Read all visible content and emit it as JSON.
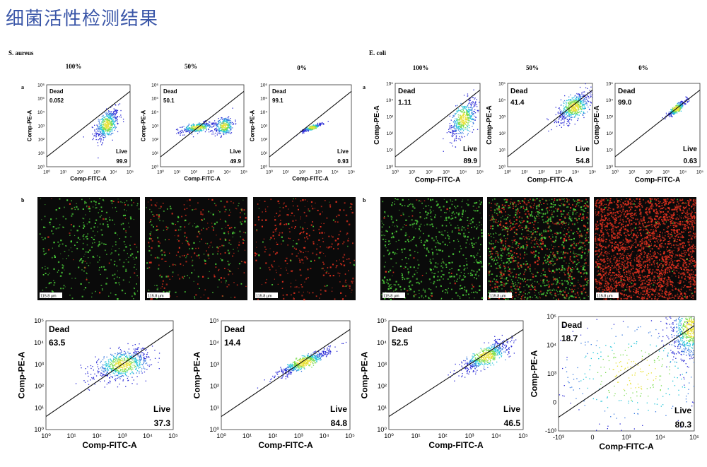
{
  "page_title": "细菌活性检测结果",
  "colors": {
    "title": "#3a56a8",
    "live_green": "#4cd13a",
    "dead_red": "#e0301e",
    "density_low": "#2b2bd6",
    "density_mid": "#22c4d8",
    "density_high": "#e8e23a"
  },
  "panels": {
    "s_aureus": {
      "name": "S. aureus",
      "panel_a": "a",
      "panel_b": "b",
      "columns": [
        "100%",
        "50%",
        "0%"
      ]
    },
    "e_coli": {
      "name": "E. coli",
      "panel_a": "a",
      "panel_b": "b",
      "columns": [
        "100%",
        "50%",
        "0%"
      ]
    }
  },
  "scale_bar_label": "115.8 µm",
  "micrographs": [
    {
      "live_fraction": 1.0,
      "dead_fraction": 0.05,
      "density": "sparse"
    },
    {
      "live_fraction": 0.45,
      "dead_fraction": 0.55,
      "density": "sparse"
    },
    {
      "live_fraction": 0.1,
      "dead_fraction": 0.9,
      "density": "sparse"
    },
    {
      "live_fraction": 0.95,
      "dead_fraction": 0.05,
      "density": "medium"
    },
    {
      "live_fraction": 0.55,
      "dead_fraction": 0.45,
      "density": "dense"
    },
    {
      "live_fraction": 0.02,
      "dead_fraction": 0.98,
      "density": "very dense"
    }
  ],
  "chart_data": [
    {
      "type": "scatter",
      "xlabel": "Comp-FITC-A",
      "ylabel": "Comp-PE-A",
      "xticks": [
        "10⁰",
        "10¹",
        "10²",
        "10³",
        "10⁴",
        "10⁵"
      ],
      "yticks": [
        "10⁰",
        "10¹",
        "10²",
        "10³",
        "10⁴",
        "10⁵",
        "10⁶"
      ],
      "gates": [
        {
          "label": "Dead",
          "value": "0.052"
        },
        {
          "label": "Live",
          "value": "99.9"
        }
      ],
      "clusters": [
        {
          "x": 3.6,
          "y": 3.1,
          "sx": 0.35,
          "sy": 0.55,
          "n": 500,
          "corr": 0.5
        }
      ]
    },
    {
      "type": "scatter",
      "xlabel": "Comp-FITC-A",
      "ylabel": "Comp-PE-A",
      "xticks": [
        "10⁰",
        "10¹",
        "10²",
        "10³",
        "10⁴",
        "10⁵"
      ],
      "yticks": [
        "10⁰",
        "10¹",
        "10²",
        "10³",
        "10⁴",
        "10⁵",
        "10⁶"
      ],
      "gates": [
        {
          "label": "Dead",
          "value": "50.1"
        },
        {
          "label": "Live",
          "value": "49.9"
        }
      ],
      "clusters": [
        {
          "x": 2.2,
          "y": 2.9,
          "sx": 0.5,
          "sy": 0.2,
          "n": 350,
          "corr": 0.6
        },
        {
          "x": 3.8,
          "y": 3.0,
          "sx": 0.3,
          "sy": 0.35,
          "n": 300,
          "corr": 0.3
        }
      ]
    },
    {
      "type": "scatter",
      "xlabel": "Comp-FITC-A",
      "ylabel": "Comp-PE-A",
      "xticks": [
        "10⁰",
        "10¹",
        "10²",
        "10³",
        "10⁴",
        "10⁵"
      ],
      "yticks": [
        "10⁰",
        "10¹",
        "10²",
        "10³",
        "10⁴",
        "10⁵",
        "10⁶"
      ],
      "gates": [
        {
          "label": "Dead",
          "value": "99.1"
        },
        {
          "label": "Live",
          "value": "0.93"
        }
      ],
      "clusters": [
        {
          "x": 2.6,
          "y": 2.9,
          "sx": 0.3,
          "sy": 0.15,
          "n": 250,
          "corr": 0.9
        }
      ]
    },
    {
      "type": "scatter",
      "xlabel": "Comp-FITC-A",
      "ylabel": "Comp-PE-A",
      "xticks": [
        "10⁰",
        "10¹",
        "10²",
        "10³",
        "10⁴",
        "10⁵"
      ],
      "yticks": [
        "10⁰",
        "10¹",
        "10²",
        "10³",
        "10⁴",
        "10⁵"
      ],
      "gates": [
        {
          "label": "Dead",
          "value": "1.11"
        },
        {
          "label": "Live",
          "value": "89.9"
        }
      ],
      "clusters": [
        {
          "x": 4.0,
          "y": 2.9,
          "sx": 0.4,
          "sy": 0.6,
          "n": 500,
          "corr": 0.6
        }
      ]
    },
    {
      "type": "scatter",
      "xlabel": "Comp-FITC-A",
      "ylabel": "Comp-PE-A",
      "xticks": [
        "10⁰",
        "10¹",
        "10²",
        "10³",
        "10⁴",
        "10⁵"
      ],
      "yticks": [
        "10⁰",
        "10¹",
        "10²",
        "10³",
        "10⁴",
        "10⁵"
      ],
      "gates": [
        {
          "label": "Dead",
          "value": "41.4"
        },
        {
          "label": "Live",
          "value": "54.8"
        }
      ],
      "clusters": [
        {
          "x": 3.9,
          "y": 3.6,
          "sx": 0.5,
          "sy": 0.45,
          "n": 600,
          "corr": 0.6
        }
      ]
    },
    {
      "type": "scatter",
      "xlabel": "Comp-FITC-A",
      "ylabel": "Comp-PE-A",
      "xticks": [
        "10⁰",
        "10¹",
        "10²",
        "10³",
        "10⁴",
        "10⁵"
      ],
      "yticks": [
        "10⁰",
        "10¹",
        "10²",
        "10³",
        "10⁴",
        "10⁵"
      ],
      "gates": [
        {
          "label": "Dead",
          "value": "99.0"
        },
        {
          "label": "Live",
          "value": "0.63"
        }
      ],
      "clusters": [
        {
          "x": 3.6,
          "y": 3.5,
          "sx": 0.3,
          "sy": 0.25,
          "n": 350,
          "corr": 0.9
        }
      ]
    },
    {
      "type": "scatter",
      "xlabel": "Comp-FITC-A",
      "ylabel": "Comp-PE-A",
      "xticks": [
        "10⁰",
        "10¹",
        "10²",
        "10³",
        "10⁴",
        "10⁵"
      ],
      "yticks": [
        "10⁰",
        "10¹",
        "10²",
        "10³",
        "10⁴",
        "10⁵"
      ],
      "gates": [
        {
          "label": "Dead",
          "value": "63.5"
        },
        {
          "label": "Live",
          "value": "37.3"
        }
      ],
      "clusters": [
        {
          "x": 3.0,
          "y": 3.0,
          "sx": 0.55,
          "sy": 0.35,
          "n": 700,
          "corr": 0.5
        }
      ]
    },
    {
      "type": "scatter",
      "xlabel": "Comp-FITC-A",
      "ylabel": "Comp-PE-A",
      "xticks": [
        "10⁰",
        "10¹",
        "10²",
        "10³",
        "10⁴",
        "10⁵"
      ],
      "yticks": [
        "10⁰",
        "10¹",
        "10²",
        "10³",
        "10⁴",
        "10⁵"
      ],
      "gates": [
        {
          "label": "Dead",
          "value": "14.4"
        },
        {
          "label": "Live",
          "value": "84.8"
        }
      ],
      "clusters": [
        {
          "x": 3.2,
          "y": 3.1,
          "sx": 0.5,
          "sy": 0.3,
          "n": 600,
          "corr": 0.9
        }
      ]
    },
    {
      "type": "scatter",
      "xlabel": "Comp-FITC-A",
      "ylabel": "Comp-PE-A",
      "xticks": [
        "10⁰",
        "10¹",
        "10²",
        "10³",
        "10⁴",
        "10⁵"
      ],
      "yticks": [
        "10⁰",
        "10¹",
        "10²",
        "10³",
        "10⁴",
        "10⁵"
      ],
      "gates": [
        {
          "label": "Dead",
          "value": "52.5"
        },
        {
          "label": "Live",
          "value": "46.5"
        }
      ],
      "clusters": [
        {
          "x": 3.6,
          "y": 3.4,
          "sx": 0.45,
          "sy": 0.35,
          "n": 600,
          "corr": 0.8
        }
      ]
    },
    {
      "type": "scatter",
      "xlabel": "Comp-FITC-A",
      "ylabel": "Comp-PE-A",
      "xticks": [
        "-10³",
        "0",
        "10³",
        "10⁴",
        "10⁵"
      ],
      "yticks": [
        "-10³",
        "0",
        "10³",
        "10⁴",
        "10⁵"
      ],
      "gates": [
        {
          "label": "Dead",
          "value": "18.7"
        },
        {
          "label": "Live",
          "value": "80.3"
        }
      ],
      "clusters": [
        {
          "x": 3.9,
          "y": 3.6,
          "sx": 0.3,
          "sy": 0.55,
          "n": 900,
          "corr": 0.2
        },
        {
          "x": 2.2,
          "y": 2.0,
          "sx": 1.2,
          "sy": 1.0,
          "n": 350,
          "corr": 0.0
        }
      ]
    }
  ]
}
